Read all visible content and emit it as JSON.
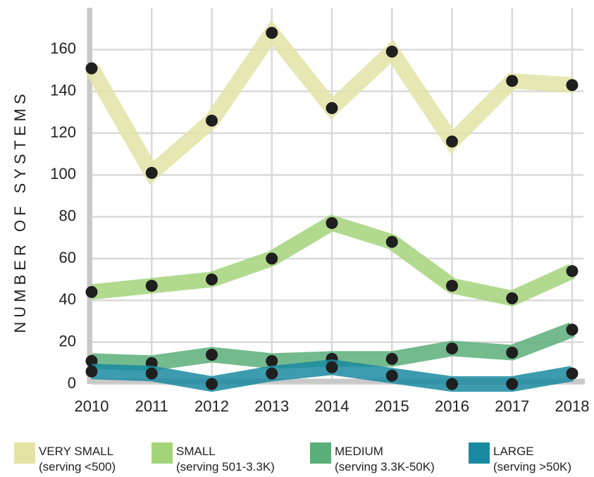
{
  "chart_data": {
    "type": "line",
    "y_label": "NUMBER OF SYSTEMS",
    "categories": [
      "2010",
      "2011",
      "2012",
      "2013",
      "2014",
      "2015",
      "2016",
      "2017",
      "2018"
    ],
    "series": [
      {
        "name": "VERY SMALL",
        "description": "(serving <500)",
        "color": "#e2e3a4",
        "values": [
          151,
          101,
          126,
          168,
          132,
          159,
          116,
          145,
          143
        ]
      },
      {
        "name": "SMALL",
        "description": "(serving 501-3.3K)",
        "color": "#a3d47a",
        "values": [
          44,
          47,
          50,
          60,
          77,
          68,
          47,
          41,
          54
        ]
      },
      {
        "name": "MEDIUM",
        "description": "(serving 3.3K-50K)",
        "color": "#5aae79",
        "values": [
          11,
          10,
          14,
          11,
          12,
          12,
          17,
          15,
          26
        ]
      },
      {
        "name": "LARGE",
        "description": "(serving >50K)",
        "color": "#1a8aa0",
        "values": [
          6,
          5,
          0,
          5,
          8,
          4,
          0,
          0,
          5
        ]
      }
    ],
    "ylim": [
      0,
      180
    ],
    "yticks": [
      0,
      20,
      40,
      60,
      80,
      100,
      120,
      140,
      160
    ],
    "grid": true
  }
}
